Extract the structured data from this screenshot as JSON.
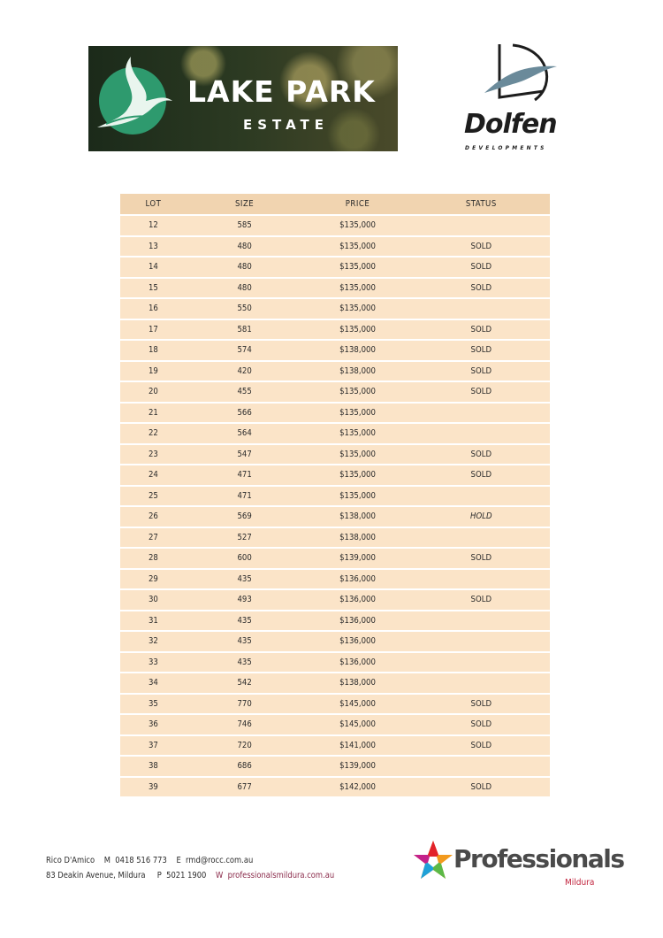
{
  "header": {
    "estate_logo": {
      "title": "LAKE PARK",
      "subtitle": "ESTATE"
    },
    "developer_logo": {
      "name": "Dolfen",
      "subtitle": "DEVELOPMENTS"
    }
  },
  "table": {
    "columns": [
      "LOT",
      "SIZE",
      "PRICE",
      "STATUS"
    ],
    "rows": [
      [
        "12",
        "585",
        "$135,000",
        ""
      ],
      [
        "13",
        "480",
        "$135,000",
        "SOLD"
      ],
      [
        "14",
        "480",
        "$135,000",
        "SOLD"
      ],
      [
        "15",
        "480",
        "$135,000",
        "SOLD"
      ],
      [
        "16",
        "550",
        "$135,000",
        ""
      ],
      [
        "17",
        "581",
        "$135,000",
        "SOLD"
      ],
      [
        "18",
        "574",
        "$138,000",
        "SOLD"
      ],
      [
        "19",
        "420",
        "$138,000",
        "SOLD"
      ],
      [
        "20",
        "455",
        "$135,000",
        "SOLD"
      ],
      [
        "21",
        "566",
        "$135,000",
        ""
      ],
      [
        "22",
        "564",
        "$135,000",
        ""
      ],
      [
        "23",
        "547",
        "$135,000",
        "SOLD"
      ],
      [
        "24",
        "471",
        "$135,000",
        "SOLD"
      ],
      [
        "25",
        "471",
        "$135,000",
        ""
      ],
      [
        "26",
        "569",
        "$138,000",
        "HOLD"
      ],
      [
        "27",
        "527",
        "$138,000",
        ""
      ],
      [
        "28",
        "600",
        "$139,000",
        "SOLD"
      ],
      [
        "29",
        "435",
        "$136,000",
        ""
      ],
      [
        "30",
        "493",
        "$136,000",
        "SOLD"
      ],
      [
        "31",
        "435",
        "$136,000",
        ""
      ],
      [
        "32",
        "435",
        "$136,000",
        ""
      ],
      [
        "33",
        "435",
        "$136,000",
        ""
      ],
      [
        "34",
        "542",
        "$138,000",
        ""
      ],
      [
        "35",
        "770",
        "$145,000",
        "SOLD"
      ],
      [
        "36",
        "746",
        "$145,000",
        "SOLD"
      ],
      [
        "37",
        "720",
        "$141,000",
        "SOLD"
      ],
      [
        "38",
        "686",
        "$139,000",
        ""
      ],
      [
        "39",
        "677",
        "$142,000",
        "SOLD"
      ]
    ]
  },
  "footer": {
    "line1": "Rico D'Amico    M  0418 516 773    E  rmd@rocc.com.au",
    "line2": "83 Deakin Avenue, Mildura     P  5021 1900    ",
    "website": "W  professionalsmildura.com.au",
    "agency_logo": {
      "name": "Professionals",
      "location": "Mildura"
    }
  },
  "colors": {
    "header_row": "#f1d4b0",
    "row": "#fbe4c8",
    "banner_green": "#2e9a6e",
    "accent_red": "#c0203a"
  }
}
